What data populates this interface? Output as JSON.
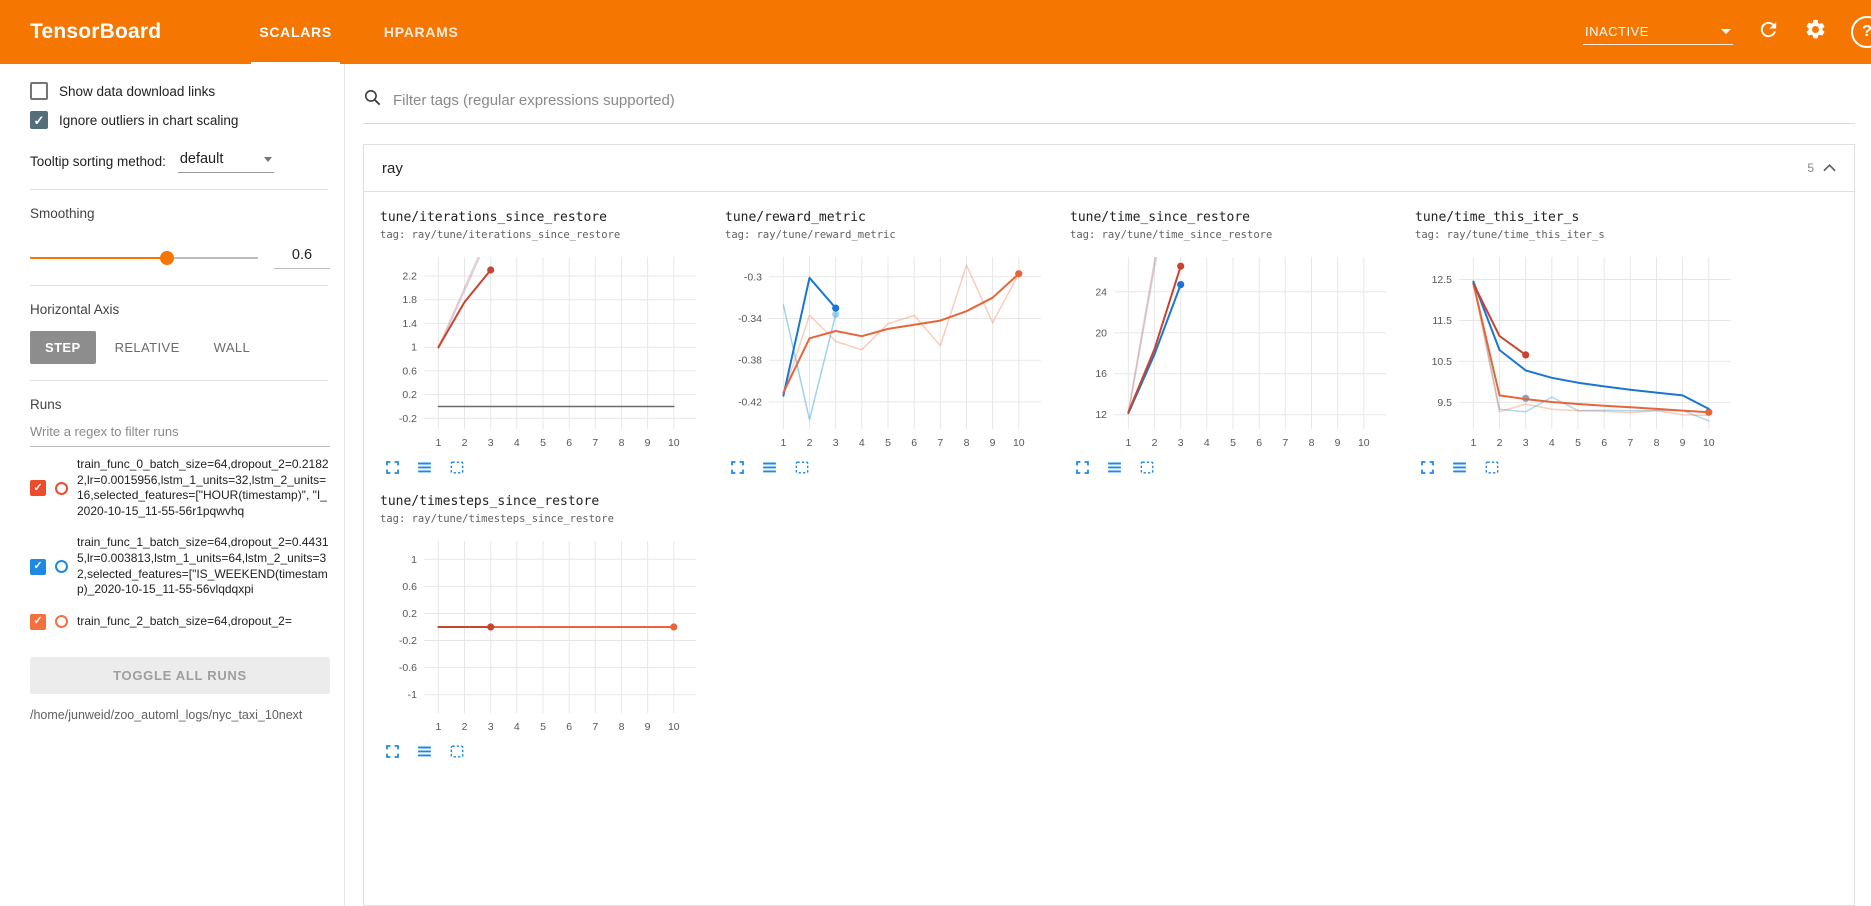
{
  "header": {
    "brand": "TensorBoard",
    "tabs": [
      {
        "label": "SCALARS",
        "active": true
      },
      {
        "label": "HPARAMS",
        "active": false
      }
    ],
    "status": "INACTIVE",
    "accent_color": "#f57600"
  },
  "icons": {
    "search": "magnifier",
    "refresh": "circular-arrow",
    "settings": "gear",
    "help": "question-circle",
    "collapse_group": "chevron-up",
    "expand_chart": "fullscreen-corners",
    "view_runs": "horizontal-lines",
    "pin_chart": "dashed-square"
  },
  "sidebar": {
    "checkboxes": [
      {
        "label": "Show data download links",
        "checked": false
      },
      {
        "label": "Ignore outliers in chart scaling",
        "checked": true
      }
    ],
    "tooltip_sort": {
      "label": "Tooltip sorting method:",
      "value": "default"
    },
    "smoothing": {
      "label": "Smoothing",
      "value": "0.6",
      "percent": 60
    },
    "horizontal_axis": {
      "label": "Horizontal Axis",
      "options": [
        "STEP",
        "RELATIVE",
        "WALL"
      ],
      "selected": "STEP"
    },
    "runs": {
      "label": "Runs",
      "filter_placeholder": "Write a regex to filter runs",
      "items": [
        {
          "label": "train_func_0_batch_size=64,dropout_2=0.21822,lr=0.0015956,lstm_1_units=32,lstm_2_units=16,selected_features=[\"HOUR(timestamp)\", \"I_2020-10-15_11-55-56r1pqwvhq",
          "checked": true,
          "color": "#ee4b2a"
        },
        {
          "label": "train_func_1_batch_size=64,dropout_2=0.44315,lr=0.003813,lstm_1_units=64,lstm_2_units=32,selected_features=[\"IS_WEEKEND(timestamp)_2020-10-15_11-55-56vlqdqxpi",
          "checked": true,
          "color": "#1e88e5"
        },
        {
          "label": "train_func_2_batch_size=64,dropout_2=",
          "checked": true,
          "color": "#f4703c"
        }
      ],
      "toggle_all_label": "TOGGLE ALL RUNS",
      "log_path": "/home/junweid/zoo_automl_logs/nyc_taxi_10next"
    }
  },
  "main": {
    "filter_placeholder": "Filter tags (regular expressions supported)",
    "group": {
      "name": "ray",
      "count": "5"
    }
  },
  "chart_data": [
    {
      "type": "line",
      "title": "tune/iterations_since_restore",
      "tag": "tag: ray/tune/iterations_since_restore",
      "xlim": [
        0.45,
        10.85
      ],
      "ylim": [
        -0.38,
        2.52
      ],
      "xticks": [
        1,
        2,
        3,
        4,
        5,
        6,
        7,
        8,
        9,
        10
      ],
      "yticks": [
        -0.2,
        0.2,
        0.6,
        1,
        1.4,
        1.8,
        2.2
      ],
      "series": [
        {
          "name": "train_func_0 raw",
          "color": "#c94430",
          "opacity": 0.25,
          "width": 1.5,
          "points": [
            [
              1,
              1
            ],
            [
              2,
              2
            ],
            [
              3,
              3
            ]
          ]
        },
        {
          "name": "raw overlay",
          "color": "#a9a2c0",
          "opacity": 0.45,
          "width": 1.5,
          "points": [
            [
              1,
              0.97
            ],
            [
              2,
              1.95
            ],
            [
              3,
              2.93
            ]
          ]
        },
        {
          "name": "zero baseline",
          "color": "#6b6b6b",
          "opacity": 1,
          "width": 1.5,
          "points": [
            [
              1,
              0
            ],
            [
              10,
              0
            ]
          ]
        },
        {
          "name": "train_func_0",
          "color": "#c94430",
          "opacity": 1,
          "width": 2,
          "points": [
            [
              1,
              1
            ],
            [
              2,
              1.76
            ],
            [
              3,
              2.3
            ]
          ],
          "dot": [
            3,
            2.3
          ]
        }
      ]
    },
    {
      "type": "line",
      "title": "tune/reward_metric",
      "tag": "tag: ray/tune/reward_metric",
      "xlim": [
        0.45,
        10.85
      ],
      "ylim": [
        -0.446,
        -0.281
      ],
      "xticks": [
        1,
        2,
        3,
        4,
        5,
        6,
        7,
        8,
        9,
        10
      ],
      "yticks": [
        -0.42,
        -0.38,
        -0.34,
        -0.3
      ],
      "series": [
        {
          "name": "train_func_2 raw",
          "color": "#f4703c",
          "opacity": 0.35,
          "width": 1.5,
          "points": [
            [
              1,
              -0.413
            ],
            [
              2,
              -0.337
            ],
            [
              3,
              -0.362
            ],
            [
              4,
              -0.37
            ],
            [
              5,
              -0.345
            ],
            [
              6,
              -0.337
            ],
            [
              7,
              -0.366
            ],
            [
              8,
              -0.289
            ],
            [
              9,
              -0.344
            ],
            [
              10,
              -0.297
            ]
          ]
        },
        {
          "name": "train_func_1 raw",
          "color": "#5fb4e0",
          "opacity": 0.6,
          "width": 1.5,
          "points": [
            [
              1,
              -0.327
            ],
            [
              2,
              -0.437
            ],
            [
              3,
              -0.336
            ]
          ],
          "dot": [
            3,
            -0.336
          ]
        },
        {
          "name": "train_func_1",
          "color": "#1976d2",
          "opacity": 1,
          "width": 2,
          "points": [
            [
              1,
              -0.414
            ],
            [
              2,
              -0.301
            ],
            [
              3,
              -0.33
            ]
          ],
          "dot": [
            3,
            -0.33
          ]
        },
        {
          "name": "train_func_2",
          "color": "#e8653a",
          "opacity": 1,
          "width": 2,
          "points": [
            [
              1,
              -0.411
            ],
            [
              2,
              -0.359
            ],
            [
              3,
              -0.352
            ],
            [
              4,
              -0.357
            ],
            [
              5,
              -0.35
            ],
            [
              6,
              -0.346
            ],
            [
              7,
              -0.342
            ],
            [
              8,
              -0.333
            ],
            [
              9,
              -0.32
            ],
            [
              10,
              -0.297
            ]
          ],
          "dot": [
            10,
            -0.297
          ]
        }
      ]
    },
    {
      "type": "line",
      "title": "tune/time_since_restore",
      "tag": "tag: ray/tune/time_since_restore",
      "xlim": [
        0.45,
        10.85
      ],
      "ylim": [
        10.6,
        27.4
      ],
      "xticks": [
        1,
        2,
        3,
        4,
        5,
        6,
        7,
        8,
        9,
        10
      ],
      "yticks": [
        12,
        16,
        20,
        24
      ],
      "series": [
        {
          "name": "raw a",
          "color": "#a9a2c0",
          "opacity": 0.5,
          "width": 1.5,
          "points": [
            [
              1,
              12.1
            ],
            [
              2,
              26.4
            ],
            [
              3,
              40
            ]
          ]
        },
        {
          "name": "raw b",
          "color": "#d9a39b",
          "opacity": 0.55,
          "width": 1.5,
          "points": [
            [
              1,
              12.3
            ],
            [
              2,
              27
            ],
            [
              3,
              41
            ]
          ]
        },
        {
          "name": "train_func_1",
          "color": "#1976d2",
          "opacity": 1,
          "width": 2,
          "points": [
            [
              1,
              12.15
            ],
            [
              2,
              17.9
            ],
            [
              3,
              24.7
            ]
          ],
          "dot": [
            3,
            24.7
          ]
        },
        {
          "name": "train_func_0",
          "color": "#c94430",
          "opacity": 1,
          "width": 2,
          "points": [
            [
              1,
              12.25
            ],
            [
              2,
              18.4
            ],
            [
              3,
              26.5
            ]
          ],
          "dot": [
            3,
            26.5
          ]
        }
      ]
    },
    {
      "type": "line",
      "title": "tune/time_this_iter_s",
      "tag": "tag: ray/tune/time_this_iter_s",
      "xlim": [
        0.45,
        10.85
      ],
      "ylim": [
        8.85,
        13.05
      ],
      "xticks": [
        1,
        2,
        3,
        4,
        5,
        6,
        7,
        8,
        9,
        10
      ],
      "yticks": [
        9.5,
        10.5,
        11.5,
        12.5
      ],
      "series": [
        {
          "name": "raw light blue",
          "color": "#5fb4e0",
          "opacity": 0.5,
          "width": 1.5,
          "points": [
            [
              1,
              12.45
            ],
            [
              2,
              9.33
            ],
            [
              3,
              9.27
            ],
            [
              4,
              9.63
            ],
            [
              5,
              9.3
            ],
            [
              6,
              9.31
            ],
            [
              7,
              9.3
            ],
            [
              8,
              9.3
            ],
            [
              9,
              9.3
            ],
            [
              10,
              9.05
            ]
          ]
        },
        {
          "name": "raw orange",
          "color": "#f4703c",
          "opacity": 0.35,
          "width": 1.5,
          "points": [
            [
              1,
              12.4
            ],
            [
              2,
              9.27
            ],
            [
              3,
              9.46
            ],
            [
              4,
              9.33
            ],
            [
              5,
              9.3
            ],
            [
              6,
              9.28
            ],
            [
              7,
              9.25
            ],
            [
              8,
              9.3
            ],
            [
              9,
              9.2
            ],
            [
              10,
              9.18
            ]
          ]
        },
        {
          "name": "end marker",
          "color": "#7fa6c2",
          "opacity": 1,
          "width": 2,
          "points": [
            [
              3,
              9.6
            ]
          ],
          "dot": [
            3,
            9.6
          ]
        },
        {
          "name": "train_func_2",
          "color": "#e8653a",
          "opacity": 1,
          "width": 2,
          "points": [
            [
              1,
              12.4
            ],
            [
              2,
              9.67
            ],
            [
              3,
              9.58
            ],
            [
              4,
              9.51
            ],
            [
              5,
              9.46
            ],
            [
              6,
              9.42
            ],
            [
              7,
              9.38
            ],
            [
              8,
              9.34
            ],
            [
              9,
              9.3
            ],
            [
              10,
              9.26
            ]
          ],
          "dot": [
            10,
            9.26
          ]
        },
        {
          "name": "train_func_1",
          "color": "#1976d2",
          "opacity": 1,
          "width": 2,
          "points": [
            [
              1,
              12.45
            ],
            [
              2,
              10.78
            ],
            [
              3,
              10.28
            ],
            [
              4,
              10.1
            ],
            [
              5,
              9.98
            ],
            [
              6,
              9.89
            ],
            [
              7,
              9.81
            ],
            [
              8,
              9.74
            ],
            [
              9,
              9.67
            ],
            [
              10,
              9.34
            ]
          ]
        },
        {
          "name": "train_func_0",
          "color": "#c94430",
          "opacity": 1,
          "width": 2,
          "points": [
            [
              1,
              12.4
            ],
            [
              2,
              11.12
            ],
            [
              3,
              10.66
            ]
          ],
          "dot": [
            3,
            10.66
          ]
        }
      ]
    },
    {
      "type": "line",
      "title": "tune/timesteps_since_restore",
      "tag": "tag: ray/tune/timesteps_since_restore",
      "xlim": [
        0.45,
        10.85
      ],
      "ylim": [
        -1.27,
        1.27
      ],
      "xticks": [
        1,
        2,
        3,
        4,
        5,
        6,
        7,
        8,
        9,
        10
      ],
      "yticks": [
        -1,
        -0.6,
        -0.2,
        0.2,
        0.6,
        1
      ],
      "series": [
        {
          "name": "zero baseline",
          "color": "#6b6b6b",
          "opacity": 1,
          "width": 1.5,
          "points": [
            [
              1,
              0
            ],
            [
              10,
              0
            ]
          ]
        },
        {
          "name": "train_func_2",
          "color": "#e8653a",
          "opacity": 1,
          "width": 2,
          "points": [
            [
              1,
              0
            ],
            [
              10,
              0
            ]
          ],
          "dot": [
            10,
            0
          ]
        },
        {
          "name": "train_func_0",
          "color": "#c94430",
          "opacity": 1,
          "width": 2,
          "points": [
            [
              1,
              0
            ],
            [
              3,
              0
            ]
          ],
          "dot": [
            3,
            0
          ]
        }
      ]
    }
  ]
}
